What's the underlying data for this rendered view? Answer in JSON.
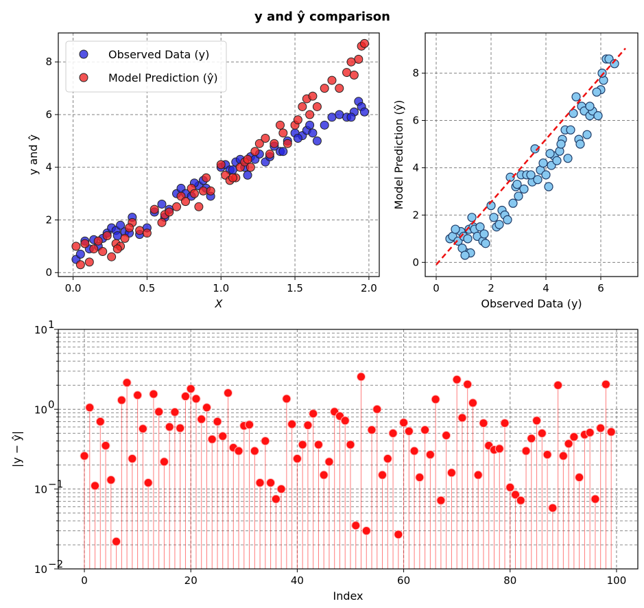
{
  "suptitle": "y and ŷ comparison",
  "chart_data": [
    {
      "type": "scatter",
      "title": "",
      "xlabel": "X",
      "ylabel": "y and ŷ",
      "xlim": [
        -0.1,
        2.07
      ],
      "ylim": [
        -0.15,
        9.1
      ],
      "xticks": [
        0.0,
        0.5,
        1.0,
        1.5,
        2.0
      ],
      "xtick_labels": [
        "0.0",
        "0.5",
        "1.0",
        "1.5",
        "2.0"
      ],
      "yticks": [
        0,
        2,
        4,
        6,
        8
      ],
      "ytick_labels": [
        "0",
        "2",
        "4",
        "6",
        "8"
      ],
      "grid": true,
      "legend_position": "top-left",
      "legend": [
        "Observed Data (y)",
        "Model Prediction (ŷ)"
      ],
      "series": [
        {
          "name": "Observed Data (y)",
          "color": "#2222dd",
          "x": [
            0.02,
            0.05,
            0.08,
            0.11,
            0.14,
            0.17,
            0.2,
            0.23,
            0.26,
            0.29,
            0.32,
            0.35,
            0.4,
            0.45,
            0.5,
            0.55,
            0.6,
            0.62,
            0.7,
            0.73,
            0.76,
            0.8,
            0.85,
            0.88,
            0.9,
            0.93,
            1.0,
            1.03,
            1.06,
            1.1,
            1.13,
            1.16,
            1.2,
            1.23,
            1.26,
            1.3,
            1.33,
            1.36,
            1.4,
            1.45,
            1.5,
            1.55,
            1.58,
            1.6,
            1.65,
            1.7,
            1.75,
            1.8,
            1.85,
            1.9,
            1.93,
            1.95,
            1.97,
            0.3,
            0.38,
            0.65,
            0.82,
            1.08,
            1.18,
            1.42,
            1.52,
            1.62,
            1.88
          ],
          "y": [
            0.5,
            0.7,
            1.2,
            0.9,
            1.25,
            1.0,
            1.3,
            1.5,
            1.7,
            1.6,
            1.8,
            1.55,
            2.1,
            1.45,
            1.7,
            2.3,
            2.6,
            2.1,
            3.0,
            3.2,
            3.0,
            2.9,
            3.3,
            3.5,
            3.2,
            2.9,
            4.0,
            4.1,
            3.9,
            4.2,
            4.3,
            4.0,
            4.4,
            4.3,
            4.5,
            4.2,
            4.4,
            4.8,
            4.6,
            5.0,
            5.3,
            5.2,
            5.4,
            5.6,
            5.0,
            5.6,
            5.9,
            6.0,
            5.9,
            6.1,
            6.5,
            6.3,
            6.1,
            1.4,
            1.5,
            2.4,
            3.4,
            3.9,
            3.7,
            4.6,
            5.1,
            5.3,
            5.9
          ]
        },
        {
          "name": "Model Prediction (ŷ)",
          "color": "#ee2222",
          "x": [
            0.02,
            0.05,
            0.08,
            0.11,
            0.14,
            0.17,
            0.2,
            0.23,
            0.26,
            0.29,
            0.32,
            0.35,
            0.4,
            0.45,
            0.5,
            0.55,
            0.6,
            0.62,
            0.7,
            0.73,
            0.76,
            0.8,
            0.85,
            0.88,
            0.9,
            0.93,
            1.0,
            1.03,
            1.06,
            1.1,
            1.13,
            1.16,
            1.2,
            1.23,
            1.26,
            1.3,
            1.33,
            1.36,
            1.4,
            1.45,
            1.5,
            1.55,
            1.58,
            1.6,
            1.65,
            1.7,
            1.75,
            1.8,
            1.85,
            1.9,
            1.93,
            1.95,
            1.97,
            0.3,
            0.38,
            0.65,
            0.82,
            1.08,
            1.18,
            1.42,
            1.52,
            1.62,
            1.88
          ],
          "y": [
            1.0,
            0.3,
            1.1,
            0.4,
            0.9,
            1.2,
            0.8,
            1.4,
            0.6,
            1.1,
            1.0,
            1.3,
            1.9,
            1.6,
            1.5,
            2.4,
            1.9,
            2.2,
            2.5,
            2.9,
            2.7,
            3.2,
            2.5,
            3.1,
            3.6,
            3.1,
            4.1,
            3.7,
            3.5,
            3.6,
            4.0,
            4.2,
            4.0,
            4.6,
            4.9,
            5.1,
            4.5,
            4.9,
            5.6,
            4.9,
            5.6,
            6.3,
            6.6,
            6.0,
            6.3,
            7.0,
            7.3,
            7.0,
            7.6,
            7.5,
            8.1,
            8.6,
            8.7,
            0.9,
            1.7,
            2.3,
            3.0,
            3.6,
            4.3,
            5.3,
            5.8,
            6.7,
            8.0
          ]
        }
      ]
    },
    {
      "type": "scatter",
      "title": "",
      "xlabel": "Observed Data (y)",
      "ylabel": "Model Prediction (ŷ)",
      "xlim": [
        -0.4,
        7.35
      ],
      "ylim": [
        -0.6,
        9.7
      ],
      "xticks": [
        0,
        2,
        4,
        6
      ],
      "xtick_labels": [
        "0",
        "2",
        "4",
        "6"
      ],
      "yticks": [
        0,
        2,
        4,
        6,
        8
      ],
      "ytick_labels": [
        "0",
        "2",
        "4",
        "6",
        "8"
      ],
      "grid": true,
      "reference_line": {
        "x": [
          0.0,
          6.9
        ],
        "y": [
          -0.1,
          9.05
        ],
        "color": "#ee1111",
        "style": "dashed"
      },
      "point_color": "#87c8f0",
      "x": [
        0.5,
        0.6,
        0.8,
        0.9,
        1.0,
        1.1,
        1.2,
        1.3,
        1.35,
        0.95,
        1.15,
        1.25,
        1.4,
        1.5,
        1.6,
        1.7,
        1.75,
        1.8,
        2.0,
        2.1,
        2.2,
        2.4,
        2.5,
        2.6,
        2.7,
        2.8,
        2.9,
        3.0,
        3.1,
        3.2,
        3.3,
        3.5,
        3.6,
        3.7,
        3.8,
        3.9,
        4.0,
        4.1,
        4.2,
        4.3,
        4.4,
        4.5,
        4.6,
        4.7,
        4.8,
        5.0,
        5.1,
        5.2,
        5.3,
        5.4,
        5.5,
        5.6,
        5.7,
        5.9,
        6.0,
        6.1,
        6.2,
        6.3,
        6.5,
        0.7,
        1.05,
        2.3,
        2.95,
        3.45,
        4.15,
        4.55,
        5.25,
        5.85,
        6.05
      ],
      "y": [
        1.0,
        1.1,
        0.9,
        1.3,
        1.1,
        0.4,
        1.4,
        1.9,
        1.5,
        0.6,
        1.0,
        0.4,
        1.4,
        1.1,
        1.5,
        0.9,
        1.2,
        0.8,
        2.4,
        1.9,
        1.5,
        2.2,
        2.0,
        1.8,
        3.6,
        2.5,
        3.2,
        2.8,
        3.7,
        3.1,
        3.7,
        3.4,
        4.8,
        3.5,
        3.9,
        4.2,
        3.7,
        3.2,
        4.1,
        4.5,
        4.3,
        4.7,
        5.2,
        5.6,
        4.4,
        6.3,
        7.0,
        5.2,
        6.6,
        6.4,
        5.4,
        6.2,
        6.4,
        6.2,
        7.3,
        7.7,
        8.6,
        8.6,
        8.4,
        1.4,
        0.3,
        1.6,
        3.3,
        3.7,
        4.6,
        5.0,
        5.0,
        7.2,
        8.0
      ],
      "x_extra": [
        5.6,
        4.9
      ],
      "y_extra": [
        6.6,
        5.6
      ]
    },
    {
      "type": "stem",
      "title": "",
      "xlabel": "Index",
      "ylabel": "|y − ŷ|",
      "yscale": "log",
      "xlim": [
        -4.9,
        104
      ],
      "ylim": [
        0.01,
        10
      ],
      "xticks": [
        0,
        20,
        40,
        60,
        80,
        100
      ],
      "xtick_labels": [
        "0",
        "20",
        "40",
        "60",
        "80",
        "100"
      ],
      "ytick_exponents": [
        "−2",
        "−1",
        "0",
        "1"
      ],
      "grid": true,
      "color": "#ff1111",
      "values": [
        0.26,
        1.05,
        0.11,
        0.7,
        0.35,
        0.13,
        0.022,
        1.3,
        2.15,
        0.24,
        1.5,
        0.57,
        0.12,
        1.55,
        0.93,
        0.22,
        0.6,
        0.92,
        0.58,
        1.45,
        1.8,
        1.35,
        0.75,
        1.05,
        0.42,
        0.7,
        0.46,
        1.6,
        0.33,
        0.3,
        0.62,
        0.64,
        0.3,
        0.12,
        0.4,
        0.12,
        0.075,
        0.1,
        1.35,
        0.65,
        0.24,
        0.36,
        0.63,
        0.88,
        0.36,
        0.15,
        0.22,
        0.93,
        0.82,
        0.72,
        0.36,
        0.035,
        2.55,
        0.03,
        0.55,
        1.0,
        0.15,
        0.24,
        0.5,
        0.027,
        0.68,
        0.53,
        0.3,
        0.14,
        0.55,
        0.27,
        1.33,
        0.072,
        0.47,
        0.16,
        2.35,
        0.78,
        2.05,
        1.2,
        0.15,
        0.67,
        0.35,
        0.31,
        0.32,
        0.67,
        0.105,
        0.085,
        0.072,
        0.3,
        0.43,
        0.72,
        0.5,
        0.27,
        0.058,
        2.0,
        0.26,
        0.37,
        0.45,
        0.14,
        0.48,
        0.51,
        0.075,
        0.58,
        2.05,
        0.52
      ]
    }
  ]
}
